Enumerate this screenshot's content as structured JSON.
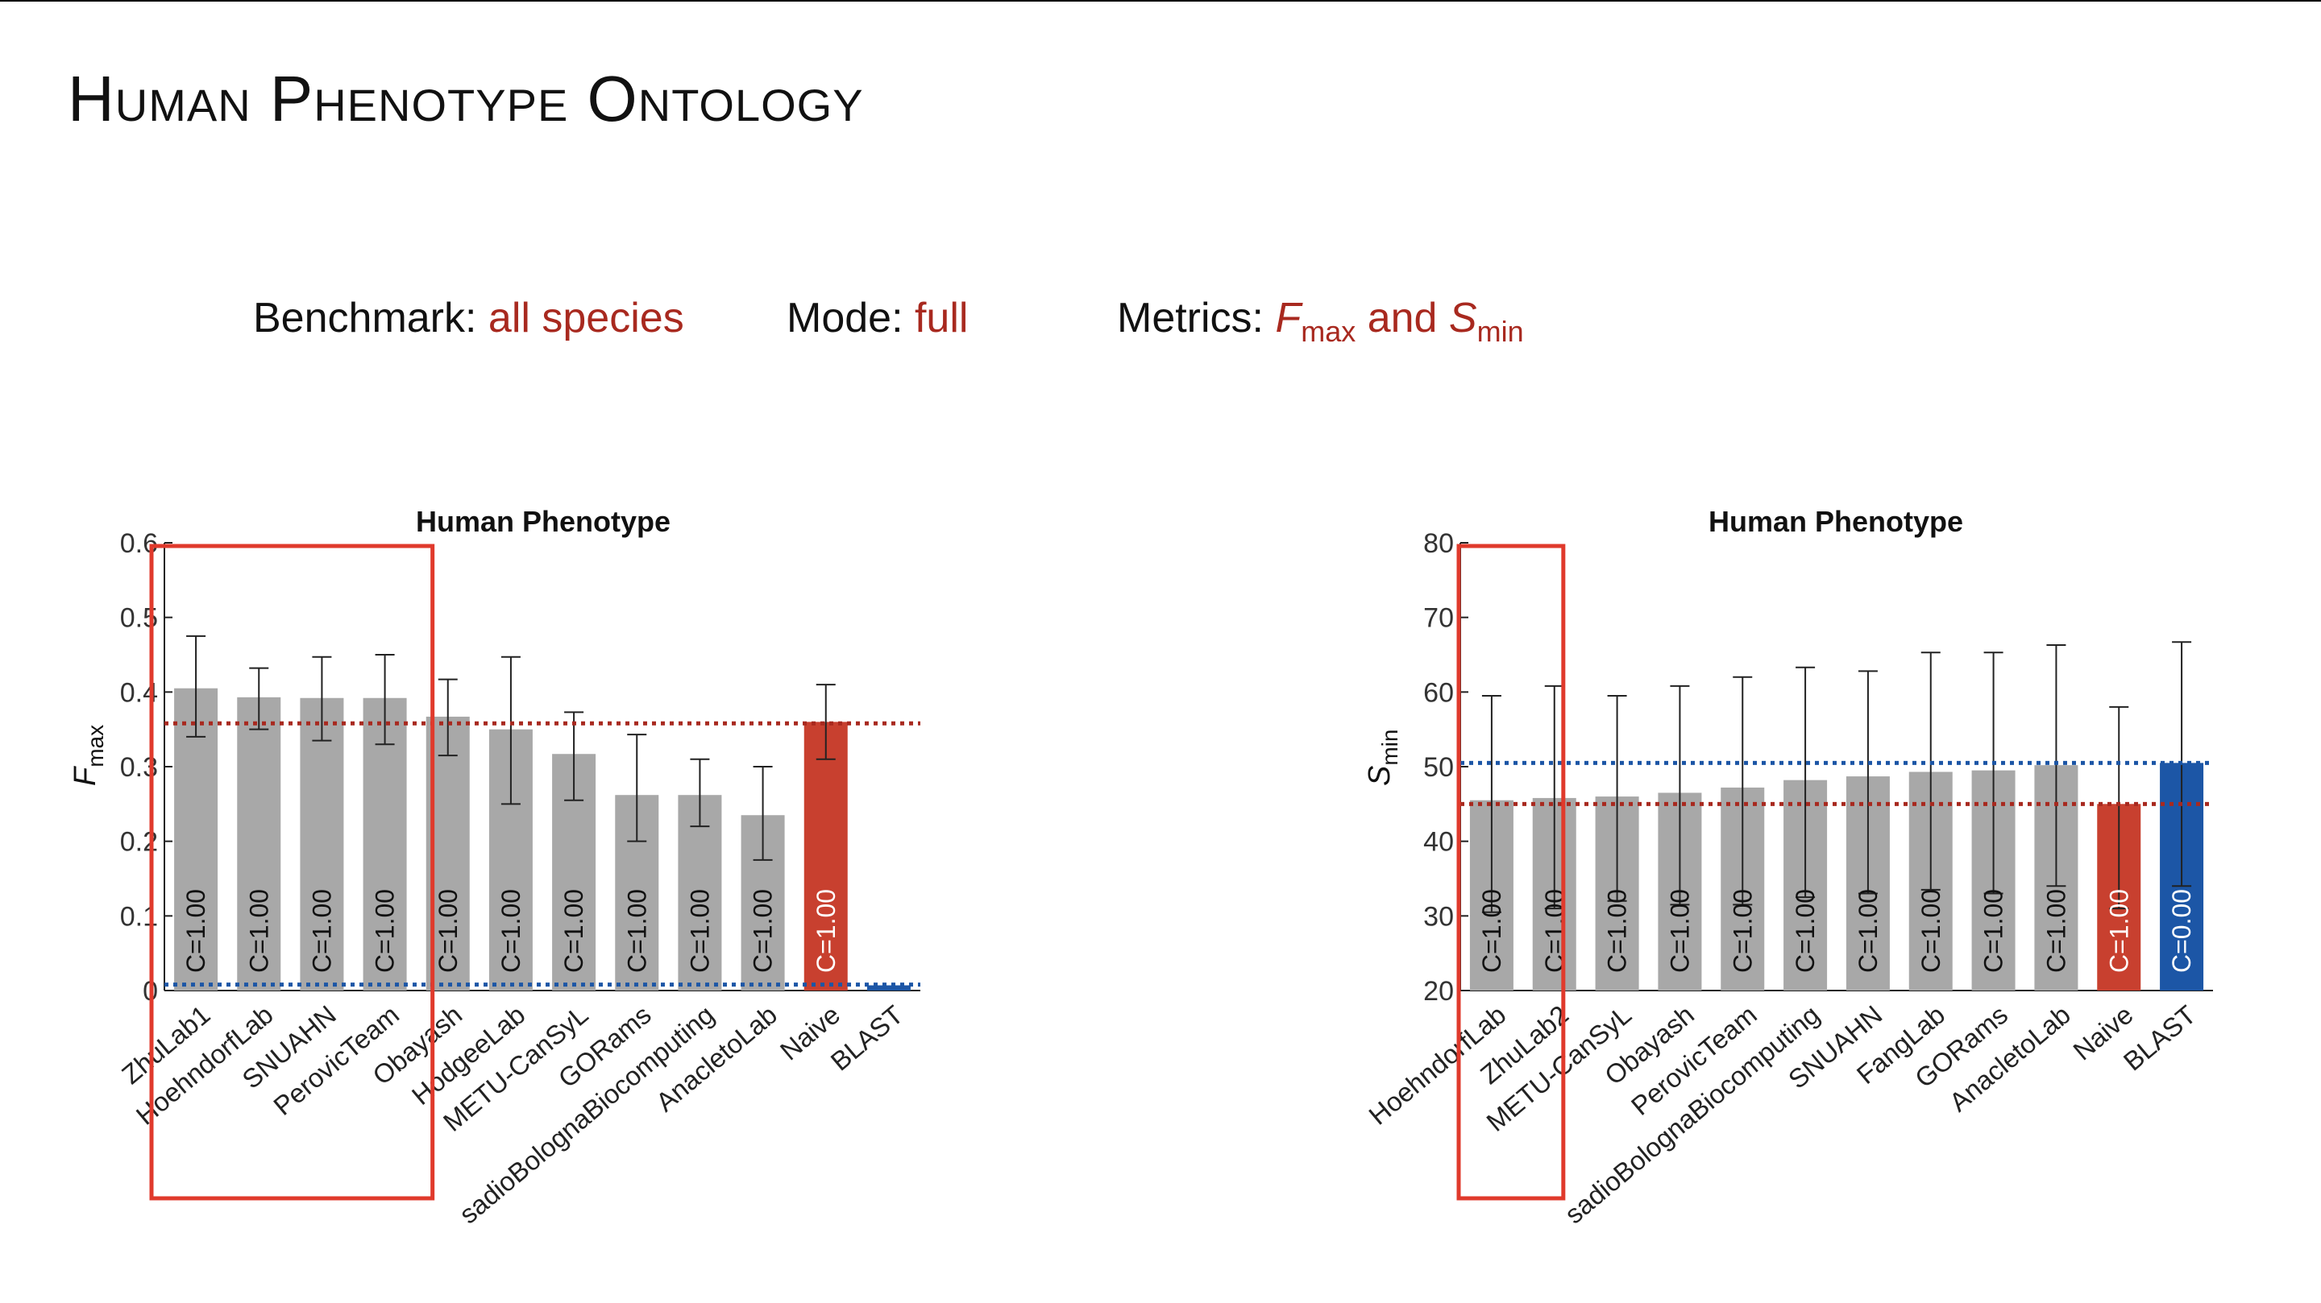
{
  "slide": {
    "title": "Human Phenotype Ontology",
    "benchmark_label": "Benchmark:",
    "benchmark_value": "all species",
    "mode_label": "Mode:",
    "mode_value": "full",
    "metrics_label": "Metrics:",
    "metrics_f": "F",
    "metrics_f_sub": "max",
    "metrics_and": "and",
    "metrics_s": "S",
    "metrics_s_sub": "min"
  },
  "colors": {
    "accent": "#a8291f",
    "bar_gray": "#a8a8a8",
    "naive_red": "#c8402f",
    "blast_blue": "#1c56a6",
    "box_red": "#e03a2c"
  },
  "chart_data": [
    {
      "type": "bar",
      "title": "Human Phenotype",
      "ylabel": "F",
      "ylabel_sub": "max",
      "ylim": [
        0,
        0.6
      ],
      "yticks": [
        0,
        0.1,
        0.2,
        0.3,
        0.4,
        0.5,
        0.6
      ],
      "ytick_labels": [
        "0",
        "0.1",
        "0.2",
        "0.3",
        "0.4",
        "0.5",
        "0.6"
      ],
      "categories": [
        "ZhuLab1",
        "HoehndorfLab",
        "SNUAHN",
        "PerovicTeam",
        "Obayash",
        "HodgeeLab",
        "METU-CanSyL",
        "GORams",
        "sadioBolognaBiocomputing",
        "AnacletoLab",
        "Naive",
        "BLAST"
      ],
      "values": [
        0.405,
        0.393,
        0.392,
        0.392,
        0.367,
        0.35,
        0.317,
        0.262,
        0.262,
        0.235,
        0.36,
        0.007
      ],
      "err_low": [
        0.34,
        0.35,
        0.335,
        0.33,
        0.315,
        0.25,
        0.255,
        0.2,
        0.22,
        0.175,
        0.31,
        0.005
      ],
      "err_high": [
        0.475,
        0.432,
        0.447,
        0.45,
        0.417,
        0.447,
        0.373,
        0.343,
        0.31,
        0.3,
        0.41,
        0.009
      ],
      "bar_labels": [
        "C=1.00",
        "C=1.00",
        "C=1.00",
        "C=1.00",
        "C=1.00",
        "C=1.00",
        "C=1.00",
        "C=1.00",
        "C=1.00",
        "C=1.00",
        "C=1.00",
        ""
      ],
      "bar_colors": [
        "gray",
        "gray",
        "gray",
        "gray",
        "gray",
        "gray",
        "gray",
        "gray",
        "gray",
        "gray",
        "red",
        "blue"
      ],
      "reference_lines": [
        {
          "value": 0.358,
          "color": "red"
        },
        {
          "value": 0.008,
          "color": "blue"
        }
      ],
      "highlight_box_categories": [
        "ZhuLab1",
        "HoehndorfLab",
        "SNUAHN",
        "PerovicTeam"
      ],
      "grid": false
    },
    {
      "type": "bar",
      "title": "Human Phenotype",
      "ylabel": "S",
      "ylabel_sub": "min",
      "ylim": [
        20,
        80
      ],
      "yticks": [
        20,
        30,
        40,
        50,
        60,
        70,
        80
      ],
      "ytick_labels": [
        "20",
        "30",
        "40",
        "50",
        "60",
        "70",
        "80"
      ],
      "categories": [
        "HoehndorfLab",
        "ZhuLab2",
        "METU-CanSyL",
        "Obayash",
        "PerovicTeam",
        "sadioBolognaBiocomputing",
        "SNUAHN",
        "FangLab",
        "GORams",
        "AnacletoLab",
        "Naive",
        "BLAST"
      ],
      "values": [
        45.5,
        45.8,
        46.0,
        46.5,
        47.2,
        48.2,
        48.7,
        49.3,
        49.5,
        50.2,
        45.0,
        50.5
      ],
      "err_low": [
        30.5,
        31.0,
        32.0,
        31.5,
        31.5,
        32.5,
        33.0,
        33.5,
        33.0,
        34.0,
        31.0,
        34.0
      ],
      "err_high": [
        59.5,
        60.8,
        59.5,
        60.8,
        62.0,
        63.3,
        62.8,
        65.3,
        65.3,
        66.3,
        58.0,
        66.7
      ],
      "bar_labels": [
        "C=1.00",
        "C=1.00",
        "C=1.00",
        "C=1.00",
        "C=1.00",
        "C=1.00",
        "C=1.00",
        "C=1.00",
        "C=1.00",
        "C=1.00",
        "C=1.00",
        "C=0.00"
      ],
      "bar_colors": [
        "gray",
        "gray",
        "gray",
        "gray",
        "gray",
        "gray",
        "gray",
        "gray",
        "gray",
        "gray",
        "red",
        "blue"
      ],
      "reference_lines": [
        {
          "value": 50.5,
          "color": "blue"
        },
        {
          "value": 45.0,
          "color": "red"
        }
      ],
      "highlight_box_categories": [
        "HoehndorfLab"
      ],
      "grid": false
    }
  ]
}
